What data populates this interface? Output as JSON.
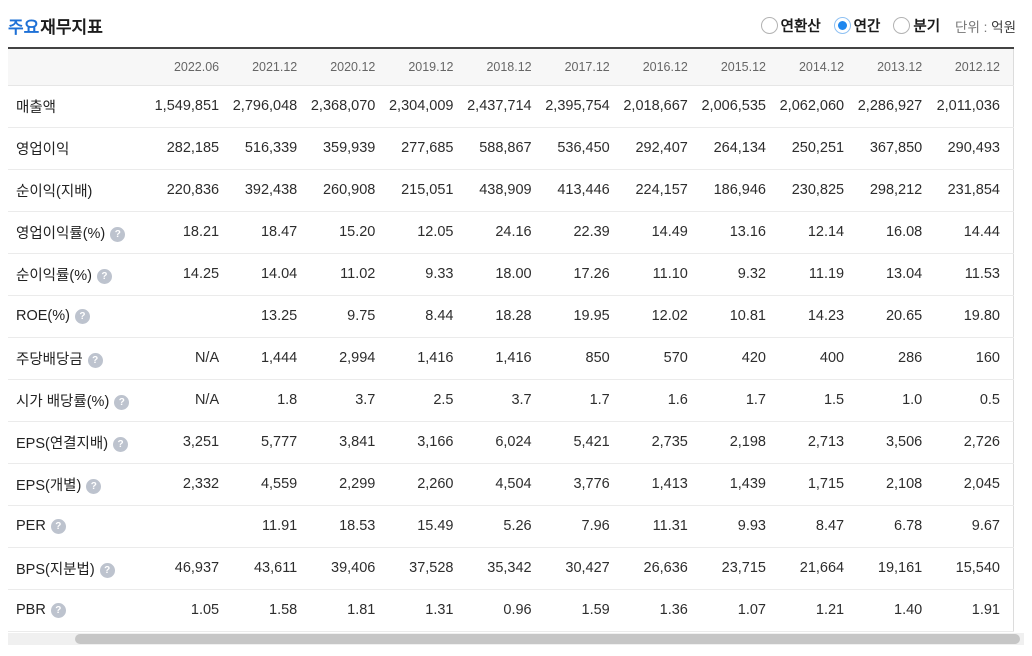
{
  "header": {
    "title_highlight": "주요",
    "title_rest": "재무지표",
    "radios": [
      {
        "label": "연환산",
        "selected": false
      },
      {
        "label": "연간",
        "selected": true
      },
      {
        "label": "분기",
        "selected": false
      }
    ],
    "unit_prefix": "단위 :",
    "unit_value": "억원"
  },
  "icons": {
    "help_glyph": "?"
  },
  "colors": {
    "title_accent": "#1e70d6",
    "radio_selected": "#1f87ee",
    "table_top_border": "#434343"
  },
  "table": {
    "columns": [
      "2022.06",
      "2021.12",
      "2020.12",
      "2019.12",
      "2018.12",
      "2017.12",
      "2016.12",
      "2015.12",
      "2014.12",
      "2013.12",
      "2012.12"
    ],
    "rows": [
      {
        "label": "매출액",
        "help": false,
        "values": [
          "1,549,851",
          "2,796,048",
          "2,368,070",
          "2,304,009",
          "2,437,714",
          "2,395,754",
          "2,018,667",
          "2,006,535",
          "2,062,060",
          "2,286,927",
          "2,011,036"
        ]
      },
      {
        "label": "영업이익",
        "help": false,
        "values": [
          "282,185",
          "516,339",
          "359,939",
          "277,685",
          "588,867",
          "536,450",
          "292,407",
          "264,134",
          "250,251",
          "367,850",
          "290,493"
        ]
      },
      {
        "label": "순이익(지배)",
        "help": false,
        "values": [
          "220,836",
          "392,438",
          "260,908",
          "215,051",
          "438,909",
          "413,446",
          "224,157",
          "186,946",
          "230,825",
          "298,212",
          "231,854"
        ]
      },
      {
        "label": "영업이익률(%)",
        "help": true,
        "values": [
          "18.21",
          "18.47",
          "15.20",
          "12.05",
          "24.16",
          "22.39",
          "14.49",
          "13.16",
          "12.14",
          "16.08",
          "14.44"
        ]
      },
      {
        "label": "순이익률(%)",
        "help": true,
        "values": [
          "14.25",
          "14.04",
          "11.02",
          "9.33",
          "18.00",
          "17.26",
          "11.10",
          "9.32",
          "11.19",
          "13.04",
          "11.53"
        ]
      },
      {
        "label": "ROE(%)",
        "help": true,
        "values": [
          "",
          "13.25",
          "9.75",
          "8.44",
          "18.28",
          "19.95",
          "12.02",
          "10.81",
          "14.23",
          "20.65",
          "19.80"
        ]
      },
      {
        "label": "주당배당금",
        "help": true,
        "values": [
          "N/A",
          "1,444",
          "2,994",
          "1,416",
          "1,416",
          "850",
          "570",
          "420",
          "400",
          "286",
          "160"
        ]
      },
      {
        "label": "시가 배당률(%)",
        "help": true,
        "values": [
          "N/A",
          "1.8",
          "3.7",
          "2.5",
          "3.7",
          "1.7",
          "1.6",
          "1.7",
          "1.5",
          "1.0",
          "0.5"
        ]
      },
      {
        "label": "EPS(연결지배)",
        "help": true,
        "values": [
          "3,251",
          "5,777",
          "3,841",
          "3,166",
          "6,024",
          "5,421",
          "2,735",
          "2,198",
          "2,713",
          "3,506",
          "2,726"
        ]
      },
      {
        "label": "EPS(개별)",
        "help": true,
        "values": [
          "2,332",
          "4,559",
          "2,299",
          "2,260",
          "4,504",
          "3,776",
          "1,413",
          "1,439",
          "1,715",
          "2,108",
          "2,045"
        ]
      },
      {
        "label": "PER",
        "help": true,
        "values": [
          "",
          "11.91",
          "18.53",
          "15.49",
          "5.26",
          "7.96",
          "11.31",
          "9.93",
          "8.47",
          "6.78",
          "9.67"
        ]
      },
      {
        "label": "BPS(지분법)",
        "help": true,
        "values": [
          "46,937",
          "43,611",
          "39,406",
          "37,528",
          "35,342",
          "30,427",
          "26,636",
          "23,715",
          "21,664",
          "19,161",
          "15,540"
        ]
      },
      {
        "label": "PBR",
        "help": true,
        "values": [
          "1.05",
          "1.58",
          "1.81",
          "1.31",
          "0.96",
          "1.59",
          "1.36",
          "1.07",
          "1.21",
          "1.40",
          "1.91"
        ]
      }
    ]
  }
}
